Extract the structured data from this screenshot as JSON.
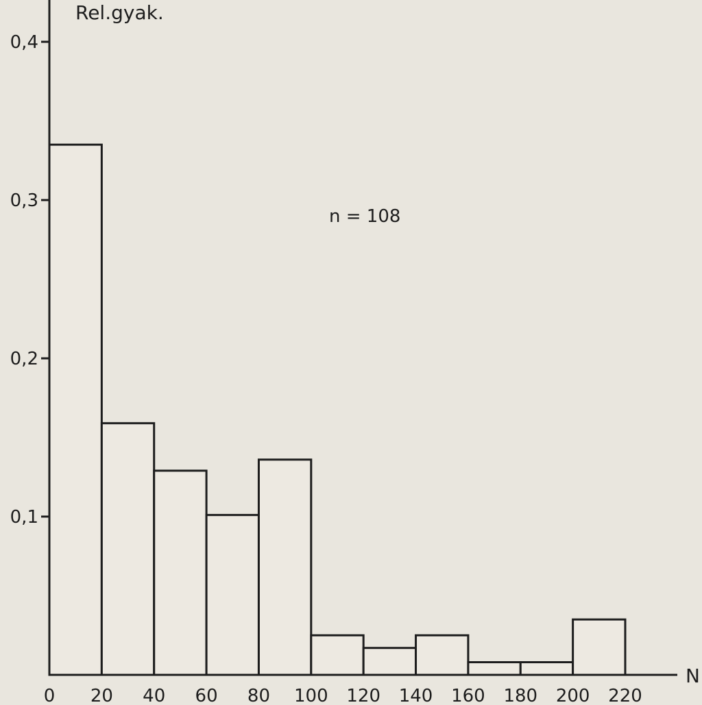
{
  "chart_data": {
    "type": "bar",
    "histogram": true,
    "ylabel": "Rel.gyak.",
    "xlabel": "N",
    "annotation": "n = 108",
    "bin_edges": [
      0,
      20,
      40,
      60,
      80,
      100,
      120,
      140,
      160,
      180,
      200,
      220
    ],
    "x_tick_labels": [
      "0",
      "20",
      "40",
      "60",
      "80",
      "100",
      "120",
      "140",
      "160",
      "180",
      "200",
      "220"
    ],
    "y_ticks": [
      0.1,
      0.2,
      0.3,
      0.4
    ],
    "y_tick_labels": [
      "0,1",
      "0,2",
      "0,3",
      "0,4"
    ],
    "values": [
      0.335,
      0.159,
      0.129,
      0.101,
      0.136,
      0.025,
      0.017,
      0.025,
      0.008,
      0.008,
      0.035
    ],
    "xlim": [
      0,
      220
    ],
    "ylim": [
      0,
      0.42
    ],
    "grid": false,
    "legend": "none",
    "colors": {
      "bar_fill": "#ede9e1",
      "ink": "#1d1d1d",
      "paper": "#e9e6de"
    }
  }
}
